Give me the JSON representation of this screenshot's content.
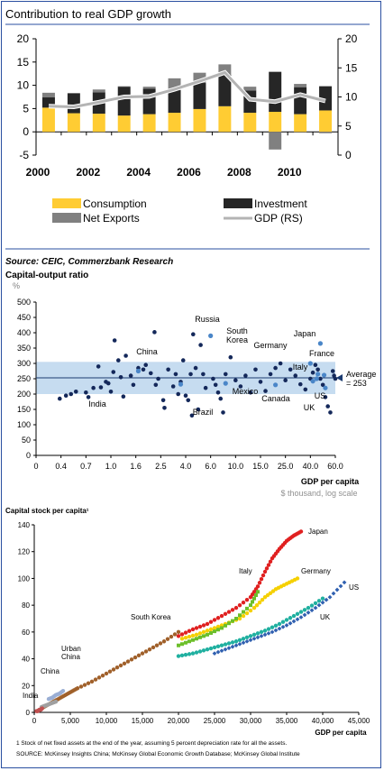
{
  "chart_data": [
    {
      "type": "bar",
      "title": "Contribution to real GDP growth",
      "x": [
        2000,
        2001,
        2002,
        2003,
        2004,
        2005,
        2006,
        2007,
        2008,
        2009,
        2010,
        2011
      ],
      "xticks": [
        "2000",
        "2002",
        "2004",
        "2006",
        "2008",
        "2010"
      ],
      "yticks_left": [
        "20",
        "15",
        "10",
        "5",
        "0",
        "-5"
      ],
      "yticks_right": [
        "20",
        "15",
        "10",
        "5",
        "0"
      ],
      "ylim_left": [
        -5,
        20
      ],
      "ylim_right": [
        0,
        20
      ],
      "series": [
        {
          "name": "Consumption",
          "kind": "bar",
          "color": "#ffcc33",
          "values": [
            5.2,
            4.0,
            3.9,
            3.5,
            3.8,
            4.1,
            4.9,
            5.5,
            4.1,
            4.3,
            3.8,
            4.6
          ]
        },
        {
          "name": "Investment",
          "kind": "bar",
          "color": "#262626",
          "values": [
            2.2,
            4.3,
            4.6,
            6.2,
            5.5,
            4.9,
            5.6,
            6.8,
            4.8,
            8.6,
            5.8,
            5.2
          ]
        },
        {
          "name": "Net Exports",
          "kind": "bar",
          "color": "#808080",
          "values": [
            1.0,
            0.0,
            0.6,
            0.1,
            0.4,
            2.5,
            2.2,
            2.2,
            0.8,
            -3.8,
            0.7,
            -0.3
          ]
        },
        {
          "name": "GDP (RS)",
          "kind": "line",
          "color": "#b4b4b4",
          "values": [
            8.4,
            8.3,
            9.1,
            10.0,
            10.1,
            11.3,
            12.7,
            14.2,
            9.6,
            9.2,
            10.4,
            9.3
          ]
        }
      ],
      "legend": [
        "Consumption",
        "Investment",
        "Net Exports",
        "GDP (RS)"
      ]
    },
    {
      "type": "scatter",
      "source": "Source: CEIC, Commerzbank Research",
      "title": "Capital-output ratio",
      "unit": "%",
      "xlabel": "GDP per capita",
      "xsub": "$ thousand, log scale",
      "xticks": [
        "0",
        "0.4",
        "0.7",
        "1.0",
        "1.6",
        "2.5",
        "4.0",
        "6.0",
        "10.0",
        "15.0",
        "25.0",
        "40.0",
        "60.0"
      ],
      "yticks": [
        "500",
        "450",
        "400",
        "350",
        "300",
        "250",
        "200",
        "150",
        "100",
        "50",
        "0"
      ],
      "ylim": [
        0,
        500
      ],
      "band": [
        200,
        305
      ],
      "average_label": "Average\n= 253",
      "average": 253,
      "labels": [
        "Russia",
        "South\nKorea",
        "Japan",
        "China",
        "Germany",
        "France",
        "Italy",
        "India",
        "Mexico",
        "Canada",
        "US",
        "UK",
        "Brazil"
      ],
      "note": "points: [tick index position, ratio]",
      "points": [
        [
          0.95,
          185
        ],
        [
          1.2,
          195
        ],
        [
          1.4,
          200
        ],
        [
          1.6,
          208
        ],
        [
          2.0,
          205
        ],
        [
          2.1,
          190
        ],
        [
          2.3,
          220
        ],
        [
          2.5,
          290
        ],
        [
          2.6,
          222
        ],
        [
          2.8,
          240
        ],
        [
          2.9,
          235
        ],
        [
          3.0,
          208
        ],
        [
          3.1,
          272
        ],
        [
          3.15,
          375
        ],
        [
          3.3,
          310
        ],
        [
          3.4,
          255
        ],
        [
          3.5,
          192
        ],
        [
          3.6,
          325
        ],
        [
          3.8,
          260
        ],
        [
          3.9,
          230
        ],
        [
          4.1,
          285
        ],
        [
          4.3,
          280
        ],
        [
          4.4,
          295
        ],
        [
          4.6,
          268
        ],
        [
          4.75,
          402
        ],
        [
          4.8,
          230
        ],
        [
          4.9,
          250
        ],
        [
          5.1,
          180
        ],
        [
          5.15,
          155
        ],
        [
          5.3,
          280
        ],
        [
          5.5,
          225
        ],
        [
          5.6,
          265
        ],
        [
          5.7,
          200
        ],
        [
          5.8,
          240
        ],
        [
          5.9,
          310
        ],
        [
          6.0,
          195
        ],
        [
          6.1,
          180
        ],
        [
          6.2,
          265
        ],
        [
          6.25,
          130
        ],
        [
          6.3,
          395
        ],
        [
          6.4,
          285
        ],
        [
          6.5,
          150
        ],
        [
          6.6,
          360
        ],
        [
          6.7,
          265
        ],
        [
          6.8,
          220
        ],
        [
          7.0,
          390
        ],
        [
          7.1,
          250
        ],
        [
          7.2,
          230
        ],
        [
          7.3,
          205
        ],
        [
          7.4,
          185
        ],
        [
          7.5,
          140
        ],
        [
          7.6,
          265
        ],
        [
          7.8,
          320
        ],
        [
          8.0,
          245
        ],
        [
          8.2,
          225
        ],
        [
          8.4,
          260
        ],
        [
          8.6,
          205
        ],
        [
          8.8,
          280
        ],
        [
          9.0,
          240
        ],
        [
          9.2,
          210
        ],
        [
          9.4,
          265
        ],
        [
          9.6,
          285
        ],
        [
          9.8,
          300
        ],
        [
          10.0,
          245
        ],
        [
          10.2,
          280
        ],
        [
          10.4,
          260
        ],
        [
          10.6,
          232
        ],
        [
          10.8,
          215
        ],
        [
          11.0,
          250
        ],
        [
          11.1,
          270
        ],
        [
          11.2,
          295
        ],
        [
          11.3,
          280
        ],
        [
          11.4,
          250
        ],
        [
          11.5,
          230
        ],
        [
          11.6,
          190
        ],
        [
          11.7,
          160
        ],
        [
          11.8,
          140
        ],
        [
          11.9,
          275
        ],
        [
          11.95,
          260
        ],
        [
          12.0,
          250
        ]
      ],
      "highlight": [
        [
          4.1,
          275
        ],
        [
          7.0,
          390
        ],
        [
          7.6,
          235
        ],
        [
          9.6,
          230
        ],
        [
          11.0,
          300
        ],
        [
          11.4,
          365
        ],
        [
          11.55,
          262
        ],
        [
          11.3,
          265
        ],
        [
          11.25,
          250
        ],
        [
          11.6,
          220
        ],
        [
          11.1,
          242
        ],
        [
          5.8,
          232
        ]
      ]
    },
    {
      "type": "scatter",
      "title": "Capital stock per capita¹",
      "xlabel": "GDP per capita",
      "xticks": [
        "0",
        "5,000",
        "10,000",
        "15,000",
        "20,000",
        "25,000",
        "30,000",
        "35,000",
        "40,000",
        "45,000"
      ],
      "yticks": [
        "140",
        "120",
        "100",
        "80",
        "60",
        "40",
        "20",
        "0"
      ],
      "xlim": [
        0,
        45000
      ],
      "ylim": [
        0,
        140
      ],
      "labels": [
        "Japan",
        "Italy",
        "Germany",
        "US",
        "UK",
        "South Korea",
        "Urban\nChina",
        "China",
        "India"
      ],
      "series": [
        {
          "name": "Japan",
          "color": "#e02020",
          "x": [
            20000,
            22000,
            24000,
            26000,
            28000,
            30000,
            31000,
            32000,
            33000,
            34000,
            35000,
            36000,
            37000
          ],
          "y": [
            57,
            62,
            66,
            72,
            78,
            86,
            94,
            105,
            115,
            122,
            128,
            132,
            135
          ]
        },
        {
          "name": "Germany",
          "color": "#f5d000",
          "x": [
            20500,
            22500,
            24500,
            26500,
            28500,
            30500,
            32000,
            33500,
            35000,
            36500
          ],
          "y": [
            55,
            58,
            62,
            66,
            70,
            78,
            86,
            92,
            96,
            100
          ]
        },
        {
          "name": "Italy",
          "color": "#6cbf2a",
          "x": [
            20000,
            22000,
            24000,
            26000,
            28000,
            30000,
            31000
          ],
          "y": [
            50,
            54,
            58,
            63,
            70,
            80,
            90
          ]
        },
        {
          "name": "UK",
          "color": "#20b0a0",
          "x": [
            20000,
            22000,
            24000,
            26000,
            28000,
            30000,
            32000,
            34000,
            36000,
            38000,
            40000
          ],
          "y": [
            42,
            44,
            47,
            50,
            53,
            57,
            61,
            66,
            72,
            78,
            85
          ]
        },
        {
          "name": "US",
          "color": "#3060b0",
          "x": [
            25000,
            27000,
            29000,
            31000,
            33000,
            35000,
            37000,
            39000,
            41000,
            43000
          ],
          "y": [
            44,
            48,
            52,
            56,
            60,
            65,
            71,
            78,
            86,
            97
          ]
        },
        {
          "name": "South Korea",
          "color": "#a0602a",
          "x": [
            1000,
            2000,
            3000,
            4000,
            5000,
            6000,
            8000,
            10000,
            12000,
            14000,
            16000,
            18000,
            20000
          ],
          "y": [
            3,
            6,
            9,
            12,
            15,
            18,
            23,
            29,
            35,
            41,
            47,
            53,
            60
          ]
        },
        {
          "name": "Urban China",
          "color": "#9aaed4",
          "x": [
            2000,
            2500,
            3000,
            3500,
            4000
          ],
          "y": [
            10,
            11,
            13,
            14,
            16
          ]
        },
        {
          "name": "China",
          "color": "#a0a0a0",
          "x": [
            1000,
            1500,
            2000,
            2500,
            3000
          ],
          "y": [
            4,
            5,
            6,
            7,
            8
          ]
        },
        {
          "name": "India",
          "color": "#c05050",
          "x": [
            300,
            500,
            700,
            900,
            1100
          ],
          "y": [
            1,
            1,
            2,
            2,
            3
          ]
        }
      ],
      "footnote": "1  Stock of net fixed assets at the end of the year, assuming 5 percent depreciation rate for all the assets.",
      "source": "SOURCE: McKinsey Insights China; McKinsey Global Economic Growth Database; McKinsey Global Institute"
    }
  ]
}
